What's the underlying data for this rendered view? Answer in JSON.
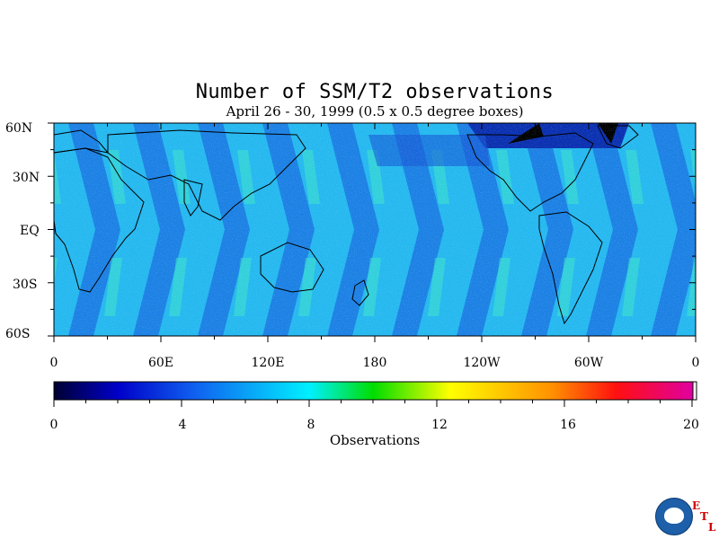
{
  "header": {
    "title": "Number of SSM/T2 observations",
    "subtitle": "April 26 - 30, 1999 (0.5 x 0.5 degree boxes)"
  },
  "map": {
    "lat_labels": [
      "60N",
      "30N",
      "EQ",
      "30S",
      "60S"
    ],
    "lon_labels": [
      "0",
      "60E",
      "120E",
      "180",
      "120W",
      "60W",
      "0"
    ],
    "lat_range": [
      -60,
      60
    ],
    "lon_range": [
      0,
      360
    ]
  },
  "colorbar": {
    "ticks": [
      "0",
      "4",
      "8",
      "12",
      "16",
      "20"
    ],
    "range": [
      0,
      20
    ],
    "label": "Observations"
  },
  "colors": {
    "scale": [
      "#000033",
      "#0000cc",
      "#1a6cf0",
      "#00e0ff",
      "#00dd00",
      "#ffff00",
      "#ffa000",
      "#ff2000",
      "#e0009a"
    ],
    "coast": "#000000"
  },
  "logo": {
    "name": "NOAA",
    "etl_letters": [
      "E",
      "T",
      "L"
    ]
  }
}
